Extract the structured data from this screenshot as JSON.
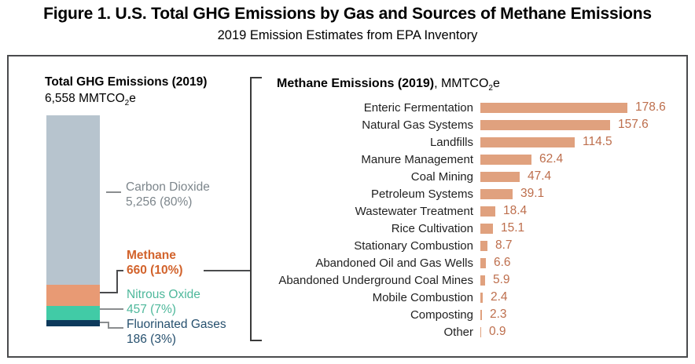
{
  "title": "Figure 1. U.S. Total GHG Emissions by Gas and Sources of Methane Emissions",
  "subtitle": "2019 Emission Estimates from EPA Inventory",
  "left_panel": {
    "header": "Total GHG Emissions (2019)",
    "total_prefix": "6,558 MMTCO",
    "total_sub": "2",
    "total_suffix": "e",
    "total_value": 6558,
    "segments": [
      {
        "name": "Carbon Dioxide",
        "value": 5256,
        "percent": "80%",
        "value_label": "5,256 (80%)",
        "bar_color": "#b7c4ce",
        "text_color": "#7d868c"
      },
      {
        "name": "Methane",
        "value": 660,
        "percent": "10%",
        "value_label": "660 (10%)",
        "bar_color": "#e89a74",
        "text_color": "#d2632c"
      },
      {
        "name": "Nitrous Oxide",
        "value": 457,
        "percent": "7%",
        "value_label": "457 (7%)",
        "bar_color": "#41cba6",
        "text_color": "#4eb89b"
      },
      {
        "name": "Fluorinated Gases",
        "value": 186,
        "percent": "3%",
        "value_label": "186 (3%)",
        "bar_color": "#0d3a5c",
        "text_color": "#26506e"
      }
    ]
  },
  "right_panel": {
    "header_bold": "Methane Emissions (2019)",
    "header_unit_prefix": ", MMTCO",
    "header_unit_sub": "2",
    "header_unit_suffix": "e",
    "bar_color": "#e0a17e",
    "value_color": "#bd6e4c",
    "rows": [
      {
        "label": "Enteric Fermentation",
        "value": 178.6
      },
      {
        "label": "Natural Gas Systems",
        "value": 157.6
      },
      {
        "label": "Landfills",
        "value": 114.5
      },
      {
        "label": "Manure Management",
        "value": 62.4
      },
      {
        "label": "Coal Mining",
        "value": 47.4
      },
      {
        "label": "Petroleum Systems",
        "value": 39.1
      },
      {
        "label": "Wastewater Treatment",
        "value": 18.4
      },
      {
        "label": "Rice Cultivation",
        "value": 15.1
      },
      {
        "label": "Stationary Combustion",
        "value": 8.7
      },
      {
        "label": "Abandoned Oil and Gas Wells",
        "value": 6.6
      },
      {
        "label": "Abandoned Underground Coal Mines",
        "value": 5.9
      },
      {
        "label": "Mobile Combustion",
        "value": 2.4
      },
      {
        "label": "Composting",
        "value": 2.3
      },
      {
        "label": "Other",
        "value": 0.9
      }
    ]
  },
  "chart_data": [
    {
      "type": "bar",
      "subtype": "stacked-single-column",
      "title": "Total GHG Emissions (2019)",
      "unit": "MMTCO2e",
      "total": 6558,
      "categories": [
        "Carbon Dioxide",
        "Methane",
        "Nitrous Oxide",
        "Fluorinated Gases"
      ],
      "values": [
        5256,
        660,
        457,
        186
      ],
      "percents": [
        "80%",
        "10%",
        "7%",
        "3%"
      ],
      "colors": [
        "#b7c4ce",
        "#e89a74",
        "#41cba6",
        "#0d3a5c"
      ],
      "legend_position": "right-of-bar"
    },
    {
      "type": "bar",
      "subtype": "horizontal",
      "title": "Methane Emissions (2019), MMTCO2e",
      "unit": "MMTCO2e",
      "categories": [
        "Enteric Fermentation",
        "Natural Gas Systems",
        "Landfills",
        "Manure Management",
        "Coal Mining",
        "Petroleum Systems",
        "Wastewater Treatment",
        "Rice Cultivation",
        "Stationary Combustion",
        "Abandoned Oil and Gas Wells",
        "Abandoned Underground Coal Mines",
        "Mobile Combustion",
        "Composting",
        "Other"
      ],
      "values": [
        178.6,
        157.6,
        114.5,
        62.4,
        47.4,
        39.1,
        18.4,
        15.1,
        8.7,
        6.6,
        5.9,
        2.4,
        2.3,
        0.9
      ],
      "bar_color": "#e0a17e",
      "data_labels": true,
      "xlim": [
        0,
        190
      ],
      "grid": false
    }
  ]
}
